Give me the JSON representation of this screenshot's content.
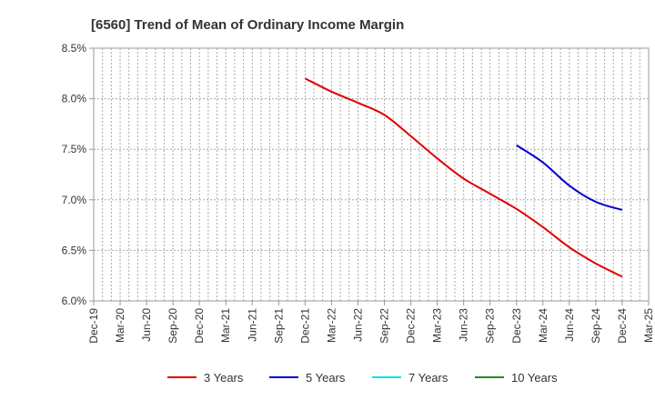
{
  "chart_data": {
    "type": "line",
    "title": "[6560]  Trend of Mean of Ordinary Income Margin",
    "xlabel": "",
    "ylabel": "",
    "ylim": [
      6.0,
      8.5
    ],
    "y_ticks": [
      "6.0%",
      "6.5%",
      "7.0%",
      "7.5%",
      "8.0%",
      "8.5%"
    ],
    "x_tick_labels": [
      "Dec-19",
      "Mar-20",
      "Jun-20",
      "Sep-20",
      "Dec-20",
      "Mar-21",
      "Jun-21",
      "Sep-21",
      "Dec-21",
      "Mar-22",
      "Jun-22",
      "Sep-22",
      "Dec-22",
      "Mar-23",
      "Jun-23",
      "Sep-23",
      "Dec-23",
      "Mar-24",
      "Jun-24",
      "Sep-24",
      "Dec-24",
      "Mar-25"
    ],
    "grid": true,
    "legend_position": "bottom",
    "series": [
      {
        "name": "3 Years",
        "color": "#dd0000",
        "points": [
          {
            "x": "Dec-21",
            "y": 8.2
          },
          {
            "x": "Mar-22",
            "y": 8.07
          },
          {
            "x": "Jun-22",
            "y": 7.96
          },
          {
            "x": "Sep-22",
            "y": 7.84
          },
          {
            "x": "Dec-22",
            "y": 7.63
          },
          {
            "x": "Mar-23",
            "y": 7.41
          },
          {
            "x": "Jun-23",
            "y": 7.21
          },
          {
            "x": "Sep-23",
            "y": 7.06
          },
          {
            "x": "Dec-23",
            "y": 6.91
          },
          {
            "x": "Mar-24",
            "y": 6.73
          },
          {
            "x": "Jun-24",
            "y": 6.53
          },
          {
            "x": "Sep-24",
            "y": 6.37
          },
          {
            "x": "Dec-24",
            "y": 6.24
          }
        ]
      },
      {
        "name": "5 Years",
        "color": "#0000cc",
        "points": [
          {
            "x": "Dec-23",
            "y": 7.54
          },
          {
            "x": "Mar-24",
            "y": 7.37
          },
          {
            "x": "Jun-24",
            "y": 7.14
          },
          {
            "x": "Sep-24",
            "y": 6.98
          },
          {
            "x": "Dec-24",
            "y": 6.9
          }
        ]
      },
      {
        "name": "7 Years",
        "color": "#00e5ee",
        "points": []
      },
      {
        "name": "10 Years",
        "color": "#228b22",
        "points": []
      }
    ]
  }
}
